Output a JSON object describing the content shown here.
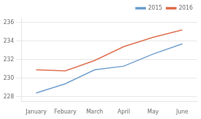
{
  "chart_data": {
    "type": "line",
    "categories": [
      "January",
      "Febuary",
      "March",
      "April",
      "May",
      "June"
    ],
    "series": [
      {
        "name": "2015",
        "color": "#6699cc",
        "values": [
          228.4,
          229.4,
          230.9,
          231.3,
          232.6,
          233.7
        ]
      },
      {
        "name": "2016",
        "color": "#dd6644",
        "values": [
          230.9,
          230.8,
          231.9,
          233.4,
          234.4,
          235.2
        ]
      }
    ],
    "ylim": [
      227.5,
      236.5
    ],
    "yticks": [
      228,
      230,
      232,
      234,
      236
    ],
    "grid": true,
    "legend": "upper right"
  }
}
